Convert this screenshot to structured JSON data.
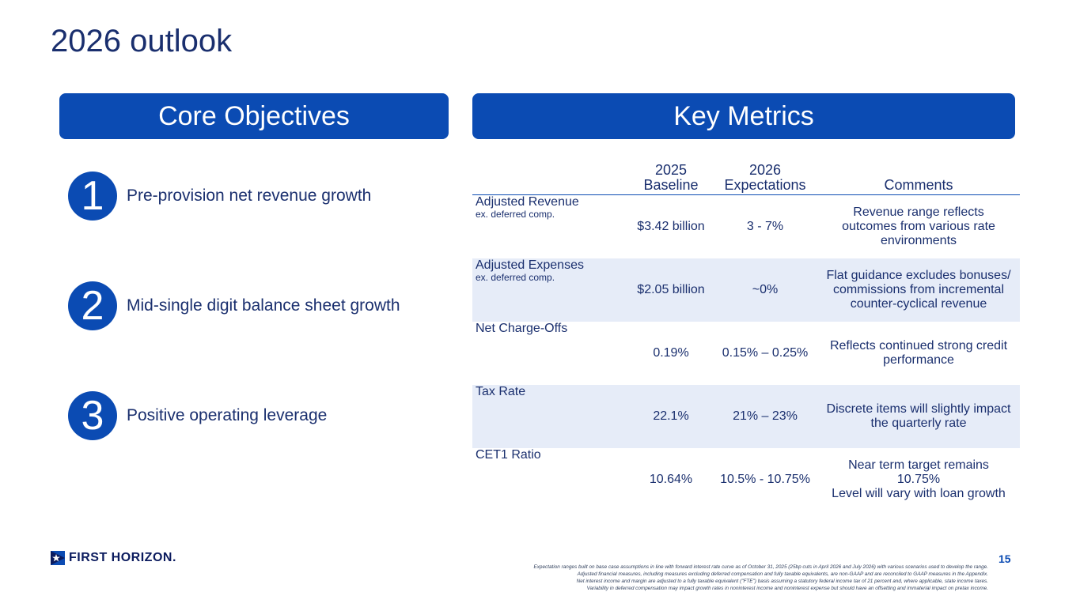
{
  "title": "2026 outlook",
  "left_banner": "Core Objectives",
  "right_banner": "Key Metrics",
  "objectives": [
    {
      "num": "1",
      "label": "Pre-provision net revenue growth"
    },
    {
      "num": "2",
      "label": "Mid-single digit balance sheet growth"
    },
    {
      "num": "3",
      "label": "Positive operating leverage"
    }
  ],
  "table": {
    "headers": {
      "baseline_l1": "2025",
      "baseline_l2": "Baseline",
      "exp_l1": "2026",
      "exp_l2": "Expectations",
      "comments": "Comments"
    },
    "rows": [
      {
        "metric": "Adjusted Revenue",
        "sub": "ex. deferred comp.",
        "baseline": "$3.42 billion",
        "expectation": "3 - 7%",
        "comments": [
          "Revenue range reflects",
          "outcomes from various rate",
          "environments"
        ]
      },
      {
        "metric": "Adjusted Expenses",
        "sub": "ex. deferred comp.",
        "baseline": "$2.05 billion",
        "expectation": "~0%",
        "comments": [
          "Flat guidance excludes bonuses/",
          "commissions from incremental",
          "counter-cyclical revenue"
        ]
      },
      {
        "metric": "Net Charge-Offs",
        "sub": "",
        "baseline": "0.19%",
        "expectation": "0.15% – 0.25%",
        "comments": [
          "Reflects continued strong credit",
          "performance",
          ""
        ]
      },
      {
        "metric": "Tax Rate",
        "sub": "",
        "baseline": "22.1%",
        "expectation": "21% – 23%",
        "comments": [
          "Discrete items will slightly impact",
          "the quarterly rate",
          ""
        ]
      },
      {
        "metric": "CET1 Ratio",
        "sub": "",
        "baseline": "10.64%",
        "expectation": "10.5% - 10.75%",
        "comments": [
          "Near term target remains",
          "10.75%",
          "Level will vary with loan growth"
        ]
      }
    ]
  },
  "logo_text": "FIRST HORIZON.",
  "page_number": "15",
  "footnotes": [
    "Expectation ranges built on base case assumptions in line with forward interest rate curve as of October 31, 2025 (25bp cuts in April 2026 and July 2026) with various scenarios used to develop the range.",
    "Adjusted financial measures, including measures excluding deferred compensation and fully taxable equivalents, are non-GAAP and are reconciled to GAAP measures in the Appendix.",
    "Net interest income and margin are adjusted to a fully taxable equivalent (\"FTE\") basis assuming a statutory federal income tax of 21 percent and, where applicable, state income taxes.",
    "Variability in deferred compensation may impact growth rates in noninterest income and noninterest expense but should have an offsetting and immaterial impact on pretax income."
  ]
}
